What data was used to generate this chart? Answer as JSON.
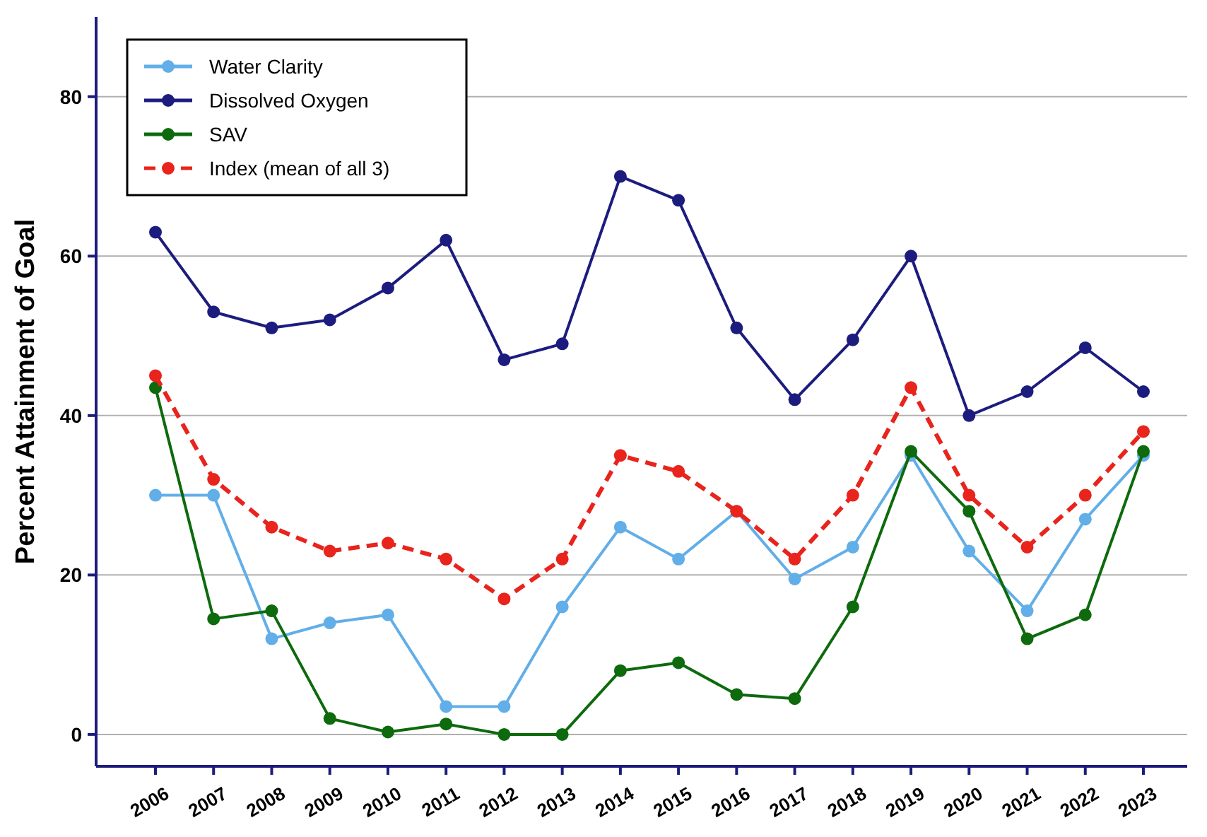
{
  "chart_data": {
    "type": "line",
    "ylabel": "Percent Attainment of Goal",
    "categories": [
      "2006",
      "2007",
      "2008",
      "2009",
      "2010",
      "2011",
      "2012",
      "2013",
      "2014",
      "2015",
      "2016",
      "2017",
      "2018",
      "2019",
      "2020",
      "2021",
      "2022",
      "2023"
    ],
    "series": [
      {
        "name": "Water Clarity",
        "color": "#62aee8",
        "values": [
          30,
          30,
          12,
          14,
          15,
          3.5,
          3.5,
          16,
          26,
          22,
          28,
          19.5,
          23.5,
          35,
          23,
          15.5,
          27,
          35
        ]
      },
      {
        "name": "Dissolved Oxygen",
        "color": "#1c1c7e",
        "values": [
          63,
          53,
          51,
          52,
          56,
          62,
          47,
          49,
          70,
          67,
          51,
          42,
          49.5,
          60,
          40,
          43,
          48.5,
          43
        ]
      },
      {
        "name": "SAV",
        "color": "#0d6a0d",
        "values": [
          43.5,
          14.5,
          15.5,
          2,
          0.3,
          1.3,
          0,
          0,
          8,
          9,
          5,
          4.5,
          16,
          35.5,
          28,
          12,
          15,
          35.5
        ]
      },
      {
        "name": "Index (mean of all 3)",
        "color": "#e8241c",
        "line_style": "dashed",
        "values": [
          45,
          32,
          26,
          23,
          24,
          22,
          17,
          22,
          35,
          33,
          28,
          22,
          30,
          43.5,
          30,
          23.5,
          30,
          38
        ]
      }
    ],
    "ylim": [
      -4,
      90
    ],
    "yticks": [
      0,
      20,
      40,
      60,
      80
    ],
    "grid": "y",
    "legend": "top left",
    "marker": "circle",
    "line_style": "solid"
  }
}
